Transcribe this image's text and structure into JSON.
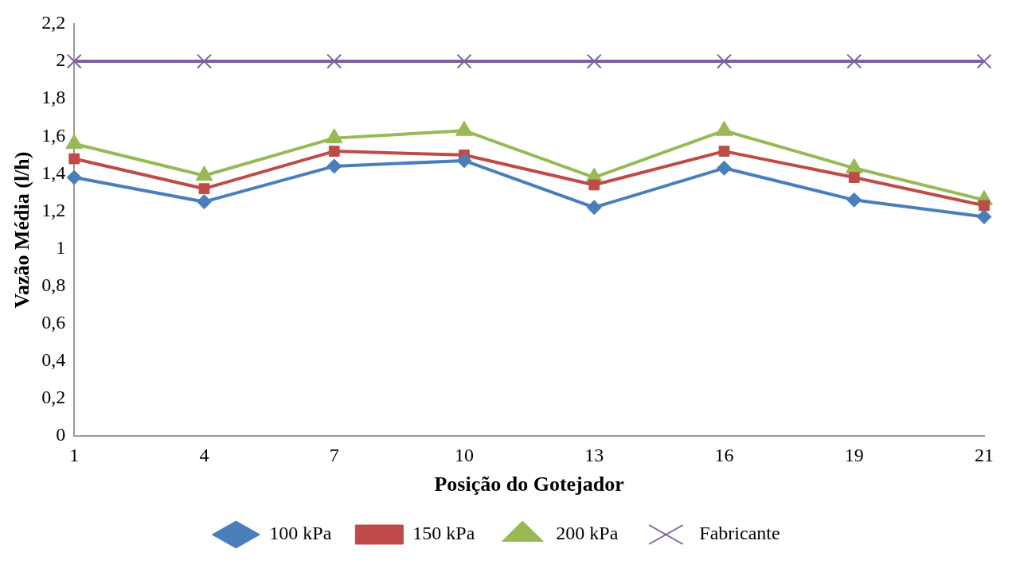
{
  "chart_data": {
    "type": "line",
    "xlabel": "Posição do Gotejador",
    "ylabel": "Vazão Média (l/h)",
    "categories": [
      "1",
      "4",
      "7",
      "10",
      "13",
      "16",
      "19",
      "21"
    ],
    "series": [
      {
        "name": "100 kPa",
        "color": "#4a7ebb",
        "marker": "diamond",
        "values": [
          1.38,
          1.25,
          1.44,
          1.47,
          1.22,
          1.43,
          1.26,
          1.17
        ]
      },
      {
        "name": "150 kPa",
        "color": "#be4b48",
        "marker": "square",
        "values": [
          1.48,
          1.32,
          1.52,
          1.5,
          1.34,
          1.52,
          1.38,
          1.23
        ]
      },
      {
        "name": "200 kPa",
        "color": "#98b954",
        "marker": "triangle",
        "values": [
          1.56,
          1.39,
          1.59,
          1.63,
          1.38,
          1.63,
          1.43,
          1.26
        ]
      },
      {
        "name": "Fabricante",
        "color": "#7d60a0",
        "marker": "cross",
        "values": [
          2,
          2,
          2,
          2,
          2,
          2,
          2,
          2
        ]
      }
    ],
    "ylim": [
      0,
      2.2
    ],
    "yticks": [
      0,
      {
        "value": 0.2,
        "label": "0,2"
      },
      {
        "value": 0.4,
        "label": "0,4"
      },
      {
        "value": 0.6,
        "label": "0,6"
      },
      {
        "value": 0.8,
        "label": "0,8"
      },
      1,
      {
        "value": 1.2,
        "label": "1,2"
      },
      {
        "value": 1.4,
        "label": "1,4"
      },
      {
        "value": 1.6,
        "label": "1,6"
      },
      {
        "value": 1.8,
        "label": "1,8"
      },
      2,
      {
        "value": 2.2,
        "label": "2,2"
      }
    ],
    "grid": false,
    "legend": "bottom",
    "line_style": "solid"
  }
}
